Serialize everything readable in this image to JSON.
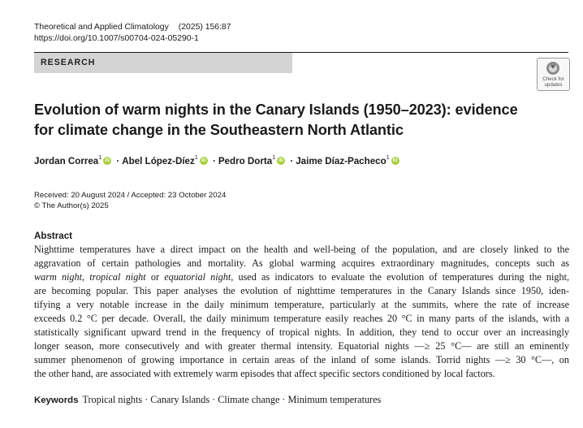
{
  "header": {
    "journal": "Theoretical and Applied Climatology",
    "year_volume": "(2025) 156:87",
    "doi": "https://doi.org/10.1007/s00704-024-05290-1",
    "section": "RESEARCH",
    "check_updates": [
      "Check for",
      "updates"
    ]
  },
  "paper": {
    "title_line1": "Evolution of warm nights in the Canary Islands (1950–2023): evidence",
    "title_line2": "for climate change in the Southeastern North Atlantic",
    "authors": [
      {
        "name": "Jordan Correa",
        "aff": "1"
      },
      {
        "name": "Abel López-Díez",
        "aff": "1"
      },
      {
        "name": "Pedro Dorta",
        "aff": "1"
      },
      {
        "name": "Jaime Díaz-Pacheco",
        "aff": "1"
      }
    ],
    "author_separator": "·",
    "orcid_label": "iD",
    "received_accepted": "Received: 20 August 2024 / Accepted: 23 October 2024",
    "copyright": "© The Author(s) 2025"
  },
  "abstract": {
    "heading": "Abstract",
    "lines": [
      "Nighttime temperatures have a direct impact on the health and well-being of the population, and are closely linked to the",
      "aggravation of certain pathologies and mortality. As global warming acquires extraordinary magnitudes, concepts such as",
      [
        "warm night",
        ", ",
        "tropical night",
        " or ",
        "equatorial night",
        ", used as indicators to evaluate the evolution of temperatures during the night,"
      ],
      "are becoming popular. This paper analyses the evolution of nighttime temperatures in the Canary Islands since 1950, iden-",
      "tifying a very notable increase in the daily minimum temperature, particularly at the summits, where the rate of increase",
      "exceeds 0.2 °C per decade. Overall, the daily minimum temperature easily reaches 20 °C in many parts of the islands, with a",
      "statistically significant upward trend in the frequency of tropical nights. In addition, they tend to occur over an increasingly",
      "longer season, more consecutively and with greater thermal intensity. Equatorial nights —≥ 25 °C— are still an eminently",
      "summer phenomenon of growing importance in certain areas of the inland of some islands. Torrid nights —≥ 30 °C—, on",
      "the other hand, are associated with extremely warm episodes that affect specific sectors conditioned by local factors."
    ]
  },
  "keywords": {
    "heading": "Keywords",
    "items": [
      "Tropical nights",
      "Canary Islands",
      "Climate change",
      "Minimum temperatures"
    ],
    "joined": "Tropical nights · Canary Islands · Climate change · Minimum temperatures"
  },
  "colors": {
    "orcid": "#a6ce39",
    "band": "#d4d4d4"
  }
}
